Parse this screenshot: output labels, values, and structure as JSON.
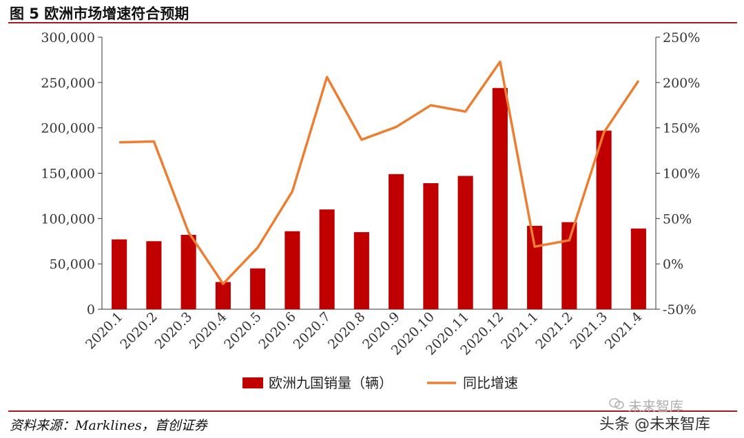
{
  "header": {
    "title": "图  5 欧洲市场增速符合预期"
  },
  "footer": {
    "source": "资料来源：Marklines，首创证券"
  },
  "watermark": {
    "line1": "未来智库",
    "line2": "头条 @未来智库"
  },
  "chart_data": {
    "type": "bar+line",
    "categories": [
      "2020.1",
      "2020.2",
      "2020.3",
      "2020.4",
      "2020.5",
      "2020.6",
      "2020.7",
      "2020.8",
      "2020.9",
      "2020.10",
      "2020.11",
      "2020.12",
      "2021.1",
      "2021.2",
      "2021.3",
      "2021.4"
    ],
    "series": [
      {
        "name": "欧洲九国销量（辆）",
        "type": "bar",
        "axis": "left",
        "color": "#c00000",
        "values": [
          77000,
          75000,
          82000,
          30000,
          45000,
          86000,
          110000,
          85000,
          149000,
          139000,
          147000,
          244000,
          92000,
          96000,
          197000,
          89000
        ]
      },
      {
        "name": "同比增速",
        "type": "line",
        "axis": "right",
        "color": "#ed7d31",
        "values": [
          134,
          135,
          35,
          -22,
          18,
          80,
          206,
          137,
          151,
          175,
          168,
          223,
          19,
          26,
          145,
          202
        ]
      }
    ],
    "left_axis": {
      "min": 0,
      "max": 300000,
      "ticks": [
        "0",
        "50,000",
        "100,000",
        "150,000",
        "200,000",
        "250,000",
        "300,000"
      ]
    },
    "right_axis": {
      "min": -50,
      "max": 250,
      "ticks": [
        "-50%",
        "0%",
        "50%",
        "100%",
        "150%",
        "200%",
        "250%"
      ]
    },
    "legend": {
      "position": "bottom"
    }
  }
}
